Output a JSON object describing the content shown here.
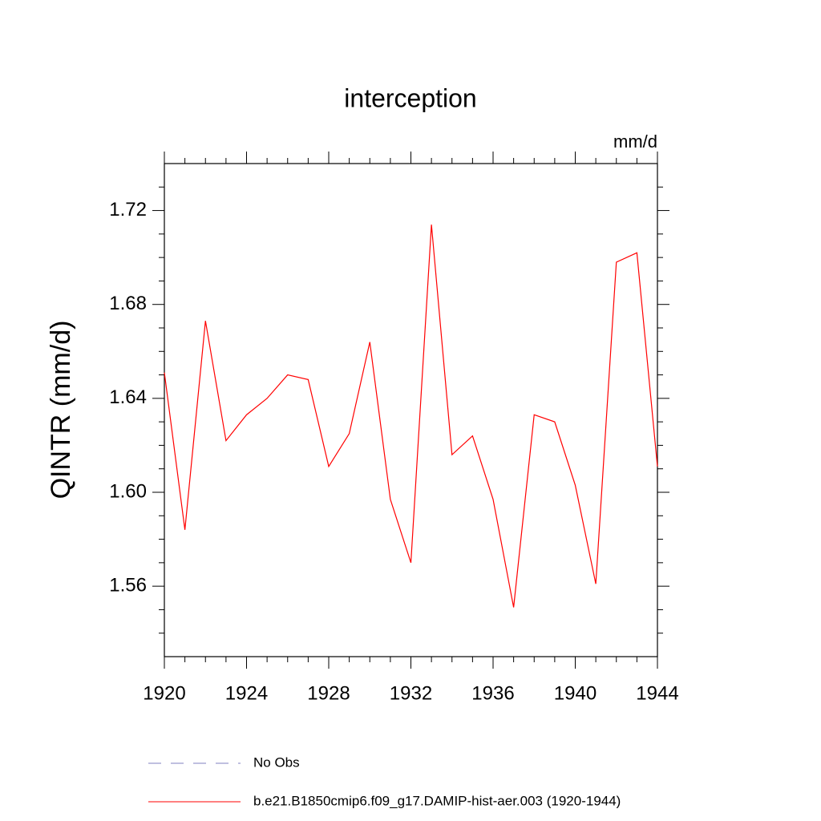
{
  "chart_data": {
    "type": "line",
    "title": "interception",
    "units": "mm/d",
    "ylabel": "QINTR  (mm/d)",
    "x": [
      1920,
      1921,
      1922,
      1923,
      1924,
      1925,
      1926,
      1927,
      1928,
      1929,
      1930,
      1931,
      1932,
      1933,
      1934,
      1935,
      1936,
      1937,
      1938,
      1939,
      1940,
      1941,
      1942,
      1943,
      1944
    ],
    "series": [
      {
        "name": "No Obs",
        "color": "#8080c0",
        "dashed": true,
        "values": [
          null,
          null,
          null,
          null,
          null,
          null,
          null,
          null,
          null,
          null,
          null,
          null,
          null,
          null,
          null,
          null,
          null,
          null,
          null,
          null,
          null,
          null,
          null,
          null,
          null
        ]
      },
      {
        "name": "b.e21.B1850cmip6.f09_g17.DAMIP-hist-aer.003 (1920-1944)",
        "color": "#ff0000",
        "dashed": false,
        "values": [
          1.651,
          1.584,
          1.673,
          1.622,
          1.633,
          1.64,
          1.65,
          1.648,
          1.611,
          1.625,
          1.664,
          1.597,
          1.57,
          1.714,
          1.616,
          1.624,
          1.597,
          1.551,
          1.633,
          1.63,
          1.603,
          1.561,
          1.698,
          1.702,
          1.611
        ]
      }
    ],
    "xlim": [
      1920,
      1944
    ],
    "xticks": [
      1920,
      1924,
      1928,
      1932,
      1936,
      1940,
      1944
    ],
    "xminorticks": [
      1921,
      1922,
      1923,
      1925,
      1926,
      1927,
      1929,
      1930,
      1931,
      1933,
      1934,
      1935,
      1937,
      1938,
      1939,
      1941,
      1942,
      1943
    ],
    "ylim": [
      1.53,
      1.74
    ],
    "yticks": [
      {
        "value": 1.56,
        "label": "1.56"
      },
      {
        "value": 1.6,
        "label": "1.60"
      },
      {
        "value": 1.64,
        "label": "1.64"
      },
      {
        "value": 1.68,
        "label": "1.68"
      },
      {
        "value": 1.72,
        "label": "1.72"
      }
    ],
    "yminorticks": [
      1.54,
      1.55,
      1.57,
      1.58,
      1.59,
      1.61,
      1.62,
      1.63,
      1.65,
      1.66,
      1.67,
      1.69,
      1.7,
      1.71,
      1.73
    ],
    "grid": false
  }
}
